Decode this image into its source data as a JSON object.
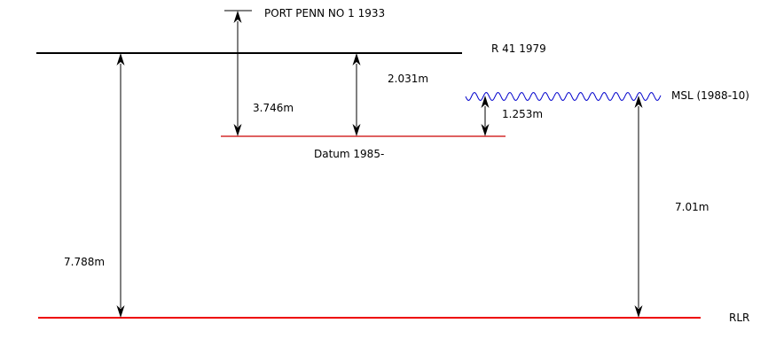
{
  "labels": {
    "port_penn": "PORT PENN NO 1 1933",
    "r41": "R 41 1979",
    "datum": "Datum 1985-",
    "msl": "MSL (1988-10)",
    "rlr": "RLR"
  },
  "measurements": {
    "port_penn_to_datum": "3.746m",
    "r41_to_datum": "2.031m",
    "msl_to_datum": "1.253m",
    "msl_to_rlr": "7.01m",
    "r41_to_rlr": "7.788m"
  },
  "colors": {
    "line": "#000000",
    "datum_line": "#cc0000",
    "rlr_line": "#ee0000",
    "msl_wave": "#0000cc"
  }
}
